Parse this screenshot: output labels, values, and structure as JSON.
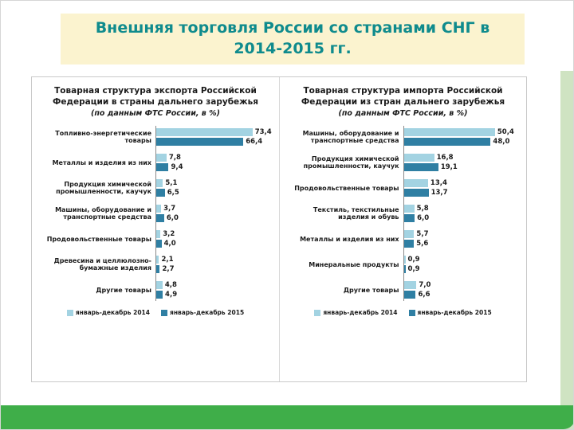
{
  "slide": {
    "title": "Внешняя торговля России со странами СНГ в 2014-2015 гг.",
    "colors": {
      "title_text": "#0f8b8d",
      "title_bg": "#fbf3cf",
      "bottom_bar": "#3fae49",
      "side_strip": "#cfe3c2",
      "series_2014": "#a3d3e2",
      "series_2015": "#2f7fa3"
    }
  },
  "chart_data": [
    {
      "type": "bar",
      "orientation": "horizontal",
      "title": "Товарная структура экспорта Российской Федерации в страны дальнего зарубежья",
      "subtitle": "(по данным ФТС России, в %)",
      "categories": [
        "Топливно-энергетические товары",
        "Металлы и изделия из них",
        "Продукция химической промышленности, каучук",
        "Машины, оборудование и транспортные средства",
        "Продовольственные товары",
        "Древесина и целлюлозно-бумажные изделия",
        "Другие товары"
      ],
      "series": [
        {
          "name": "январь-декабрь 2014",
          "color": "#a3d3e2",
          "values": [
            73.4,
            7.8,
            5.1,
            3.7,
            3.2,
            2.1,
            4.8
          ]
        },
        {
          "name": "январь-декабрь 2015",
          "color": "#2f7fa3",
          "values": [
            66.4,
            9.4,
            6.5,
            6.0,
            4.0,
            2.7,
            4.9
          ]
        }
      ],
      "xlim": [
        0,
        90
      ],
      "grid": false,
      "legend_position": "bottom"
    },
    {
      "type": "bar",
      "orientation": "horizontal",
      "title": "Товарная структура импорта Российской Федерации из стран дальнего зарубежья",
      "subtitle": "(по данным ФТС России, в %)",
      "categories": [
        "Машины, оборудование и транспортные средства",
        "Продукция химической промышленности, каучук",
        "Продовольственные товары",
        "Текстиль, текстильные изделия и обувь",
        "Металлы и изделия из них",
        "Минеральные продукты",
        "Другие товары"
      ],
      "series": [
        {
          "name": "январь-декабрь 2014",
          "color": "#a3d3e2",
          "values": [
            50.4,
            16.8,
            13.4,
            5.8,
            5.7,
            0.9,
            7.0
          ]
        },
        {
          "name": "январь-декабрь 2015",
          "color": "#2f7fa3",
          "values": [
            48.0,
            19.1,
            13.7,
            6.0,
            5.6,
            0.9,
            6.6
          ]
        }
      ],
      "xlim": [
        0,
        65
      ],
      "grid": false,
      "legend_position": "bottom"
    }
  ]
}
